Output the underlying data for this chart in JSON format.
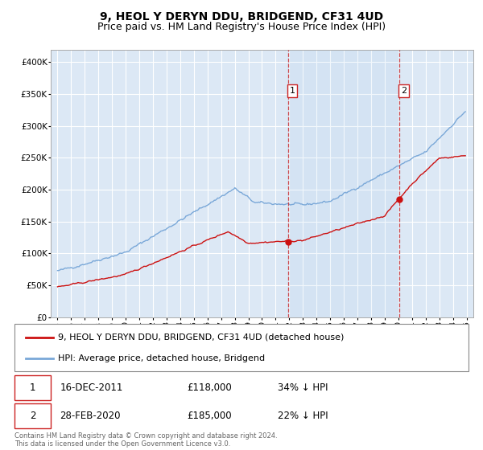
{
  "title": "9, HEOL Y DERYN DDU, BRIDGEND, CF31 4UD",
  "subtitle": "Price paid vs. HM Land Registry's House Price Index (HPI)",
  "ylim": [
    0,
    420000
  ],
  "yticks": [
    0,
    50000,
    100000,
    150000,
    200000,
    250000,
    300000,
    350000,
    400000
  ],
  "ytick_labels": [
    "£0",
    "£50K",
    "£100K",
    "£150K",
    "£200K",
    "£250K",
    "£300K",
    "£350K",
    "£400K"
  ],
  "plot_bg_color": "#dce8f5",
  "grid_color": "#ffffff",
  "hpi_color": "#7aa8d8",
  "price_color": "#cc1111",
  "dashed_line_color": "#cc2222",
  "sale1_price": 118000,
  "sale2_price": 185000,
  "legend_line1": "9, HEOL Y DERYN DDU, BRIDGEND, CF31 4UD (detached house)",
  "legend_line2": "HPI: Average price, detached house, Bridgend",
  "sale1_date": "16-DEC-2011",
  "sale1_pct": "34% ↓ HPI",
  "sale2_date": "28-FEB-2020",
  "sale2_pct": "22% ↓ HPI",
  "footnote": "Contains HM Land Registry data © Crown copyright and database right 2024.\nThis data is licensed under the Open Government Licence v3.0.",
  "title_fontsize": 10,
  "subtitle_fontsize": 9
}
